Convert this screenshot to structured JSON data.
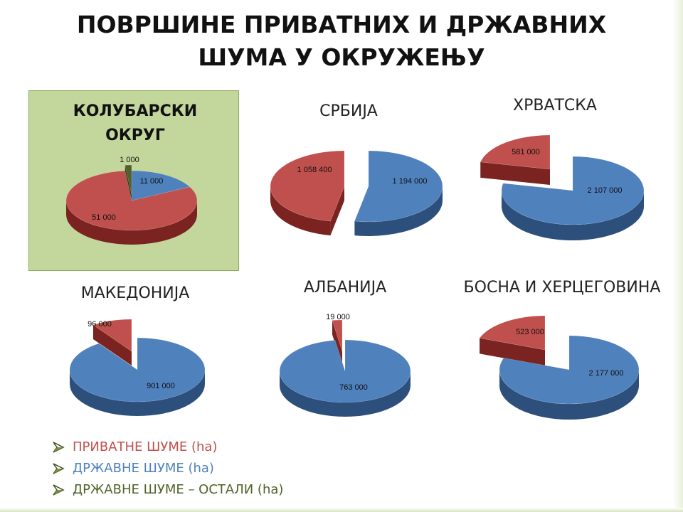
{
  "title_line1": "ПОВРШИНЕ ПРИВАТНИХ И ДРЖАВНИХ",
  "title_line2": "ШУМА У ОКРУЖЕЊУ",
  "colors": {
    "private": "#c0504d",
    "private_side": "#7a2320",
    "state": "#4f81bd",
    "state_side": "#2c4f7c",
    "state_other": "#4f6228",
    "state_other_side": "#2d3a16",
    "highlight_bg": "#c3d69b"
  },
  "legend": [
    {
      "label": "ПРИВАТНЕ ШУМЕ (ha)",
      "color": "#c0504d",
      "arrow_icon": "arrow-bullet-icon"
    },
    {
      "label": "ДРЖАВНЕ ШУМЕ (ha)",
      "color": "#4f81bd",
      "arrow_icon": "arrow-bullet-icon"
    },
    {
      "label": "ДРЖАВНЕ ШУМЕ – ОСТАЛИ (ha)",
      "color": "#4f6228",
      "arrow_icon": "arrow-bullet-icon"
    }
  ],
  "chart_data": [
    {
      "type": "pie",
      "title": "КОЛУБАРСКИ ОКРУГ",
      "title_line1": "КОЛУБАРСКИ",
      "title_line2": "ОКРУГ",
      "slices": [
        {
          "series": "state",
          "value": 11000,
          "label": "11 000"
        },
        {
          "series": "private",
          "value": 51000,
          "label": "51 000"
        },
        {
          "series": "state_other",
          "value": 1000,
          "label": "1 000"
        }
      ]
    },
    {
      "type": "pie",
      "title": "СРБИЈА",
      "slices": [
        {
          "series": "state",
          "value": 1194000,
          "label": "1 194 000"
        },
        {
          "series": "private",
          "value": 1058400,
          "label": "1 058 400"
        }
      ]
    },
    {
      "type": "pie",
      "title": "ХРВАТСКА",
      "slices": [
        {
          "series": "state",
          "value": 2107000,
          "label": "2 107 000"
        },
        {
          "series": "private",
          "value": 581000,
          "label": "581 000"
        }
      ]
    },
    {
      "type": "pie",
      "title": "МАКЕДОНИЈА",
      "slices": [
        {
          "series": "state",
          "value": 901000,
          "label": "901 000"
        },
        {
          "series": "private",
          "value": 96000,
          "label": "96 000"
        }
      ]
    },
    {
      "type": "pie",
      "title": "АЛБАНИЈА",
      "slices": [
        {
          "series": "state",
          "value": 763000,
          "label": "763 000"
        },
        {
          "series": "private",
          "value": 19000,
          "label": "19 000"
        }
      ]
    },
    {
      "type": "pie",
      "title": "БОСНА И ХЕРЦЕГОВИНА",
      "slices": [
        {
          "series": "state",
          "value": 2177000,
          "label": "2 177 000"
        },
        {
          "series": "private",
          "value": 523000,
          "label": "523 000"
        }
      ]
    }
  ]
}
